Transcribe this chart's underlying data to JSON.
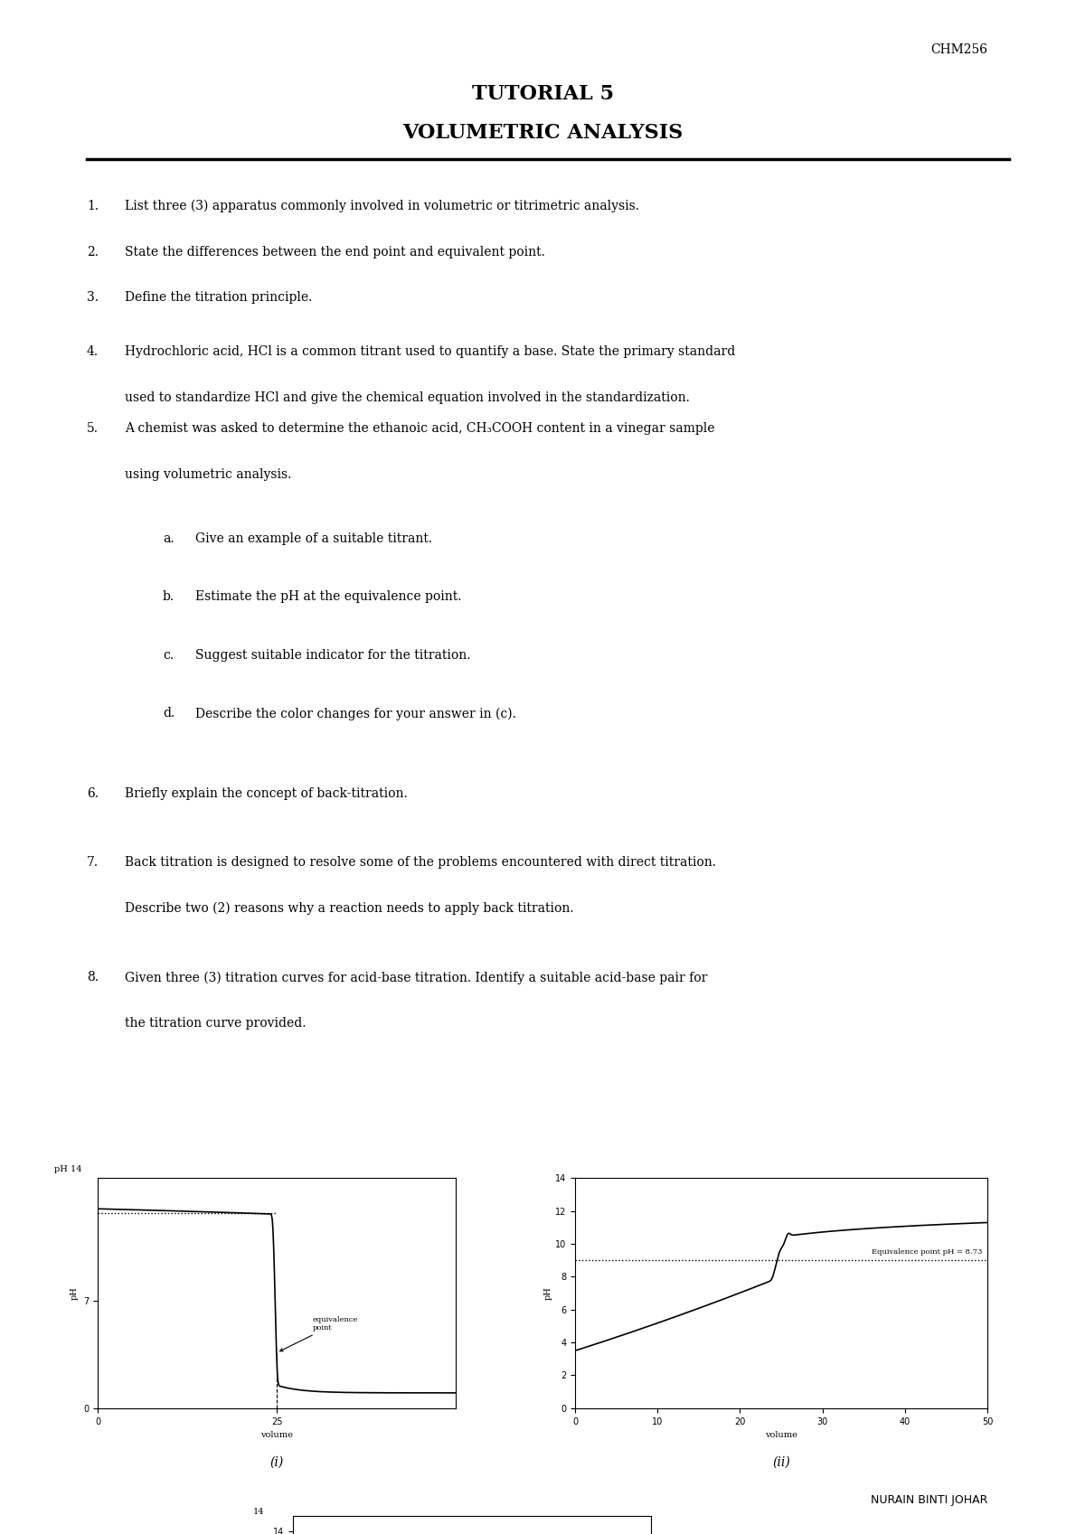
{
  "background_color": "#ffffff",
  "page_width": 12.0,
  "page_height": 16.97,
  "header_code": "CHM256",
  "title1": "TUTORIAL 5",
  "title2": "VOLUMETRIC ANALYSIS",
  "footer": "NURAIN BINTI JOHAR",
  "questions": [
    "1. List three (3) apparatus commonly involved in volumetric or titrimetric analysis.",
    "2. State the differences between the end point and equivalent point.",
    "3. Define the titration principle.",
    "4. Hydrochloric acid, HCl is a common titrant used to quantify a base. State the primary standard\n  used to standardize HCl and give the chemical equation involved in the standardization.",
    "5. A chemist was asked to determine the ethanoic acid, CH₃COOH content in a vinegar sample\n  using volumetric analysis.",
    "5a. a. Give an example of a suitable titrant.",
    "5b. b. Estimate the pH at the equivalence point.",
    "5c. c. Suggest suitable indicator for the titration.",
    "5d. d. Describe the color changes for your answer in (c).",
    "6. Briefly explain the concept of back-titration.",
    "7. Back titration is designed to resolve some of the problems encountered with direct titration.\n  Describe two (2) reasons why a reaction needs to apply back titration.",
    "8. Given three (3) titration curves for acid-base titration. Identify a suitable acid-base pair for\n  the titration curve provided."
  ]
}
